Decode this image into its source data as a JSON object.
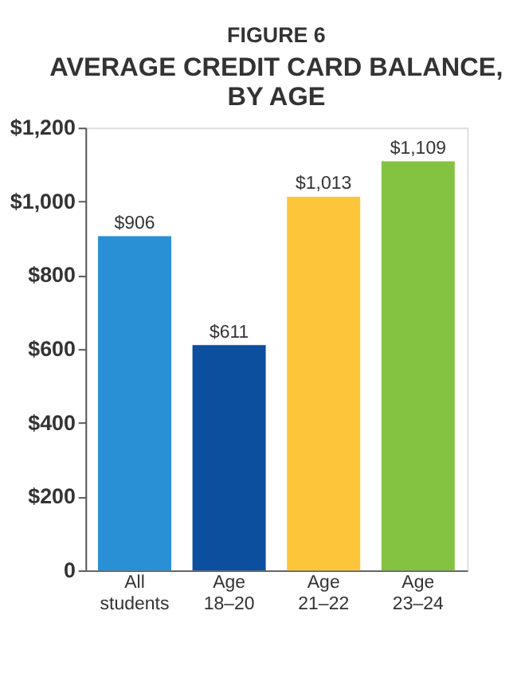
{
  "chart_data": {
    "type": "bar",
    "subtitle": "FIGURE 6",
    "title": "AVERAGE CREDIT CARD BALANCE, BY AGE",
    "categories": [
      "All students",
      "Age 18–20",
      "Age 21–22",
      "Age 23–24"
    ],
    "values": [
      906,
      611,
      1013,
      1109
    ],
    "colors": [
      "#2990d5",
      "#0b4f9e",
      "#fdc63a",
      "#84c341"
    ],
    "value_labels": [
      "$906",
      "$611",
      "$1,013",
      "$1,109"
    ],
    "ylim": [
      0,
      1200
    ],
    "yticks": [
      {
        "value": 0,
        "label": "0"
      },
      {
        "value": 200,
        "label": "$200"
      },
      {
        "value": 400,
        "label": "$400"
      },
      {
        "value": 600,
        "label": "$600"
      },
      {
        "value": 800,
        "label": "$800"
      },
      {
        "value": 1000,
        "label": "$1,000"
      },
      {
        "value": 1200,
        "label": "$1,200"
      }
    ],
    "grid": false
  }
}
